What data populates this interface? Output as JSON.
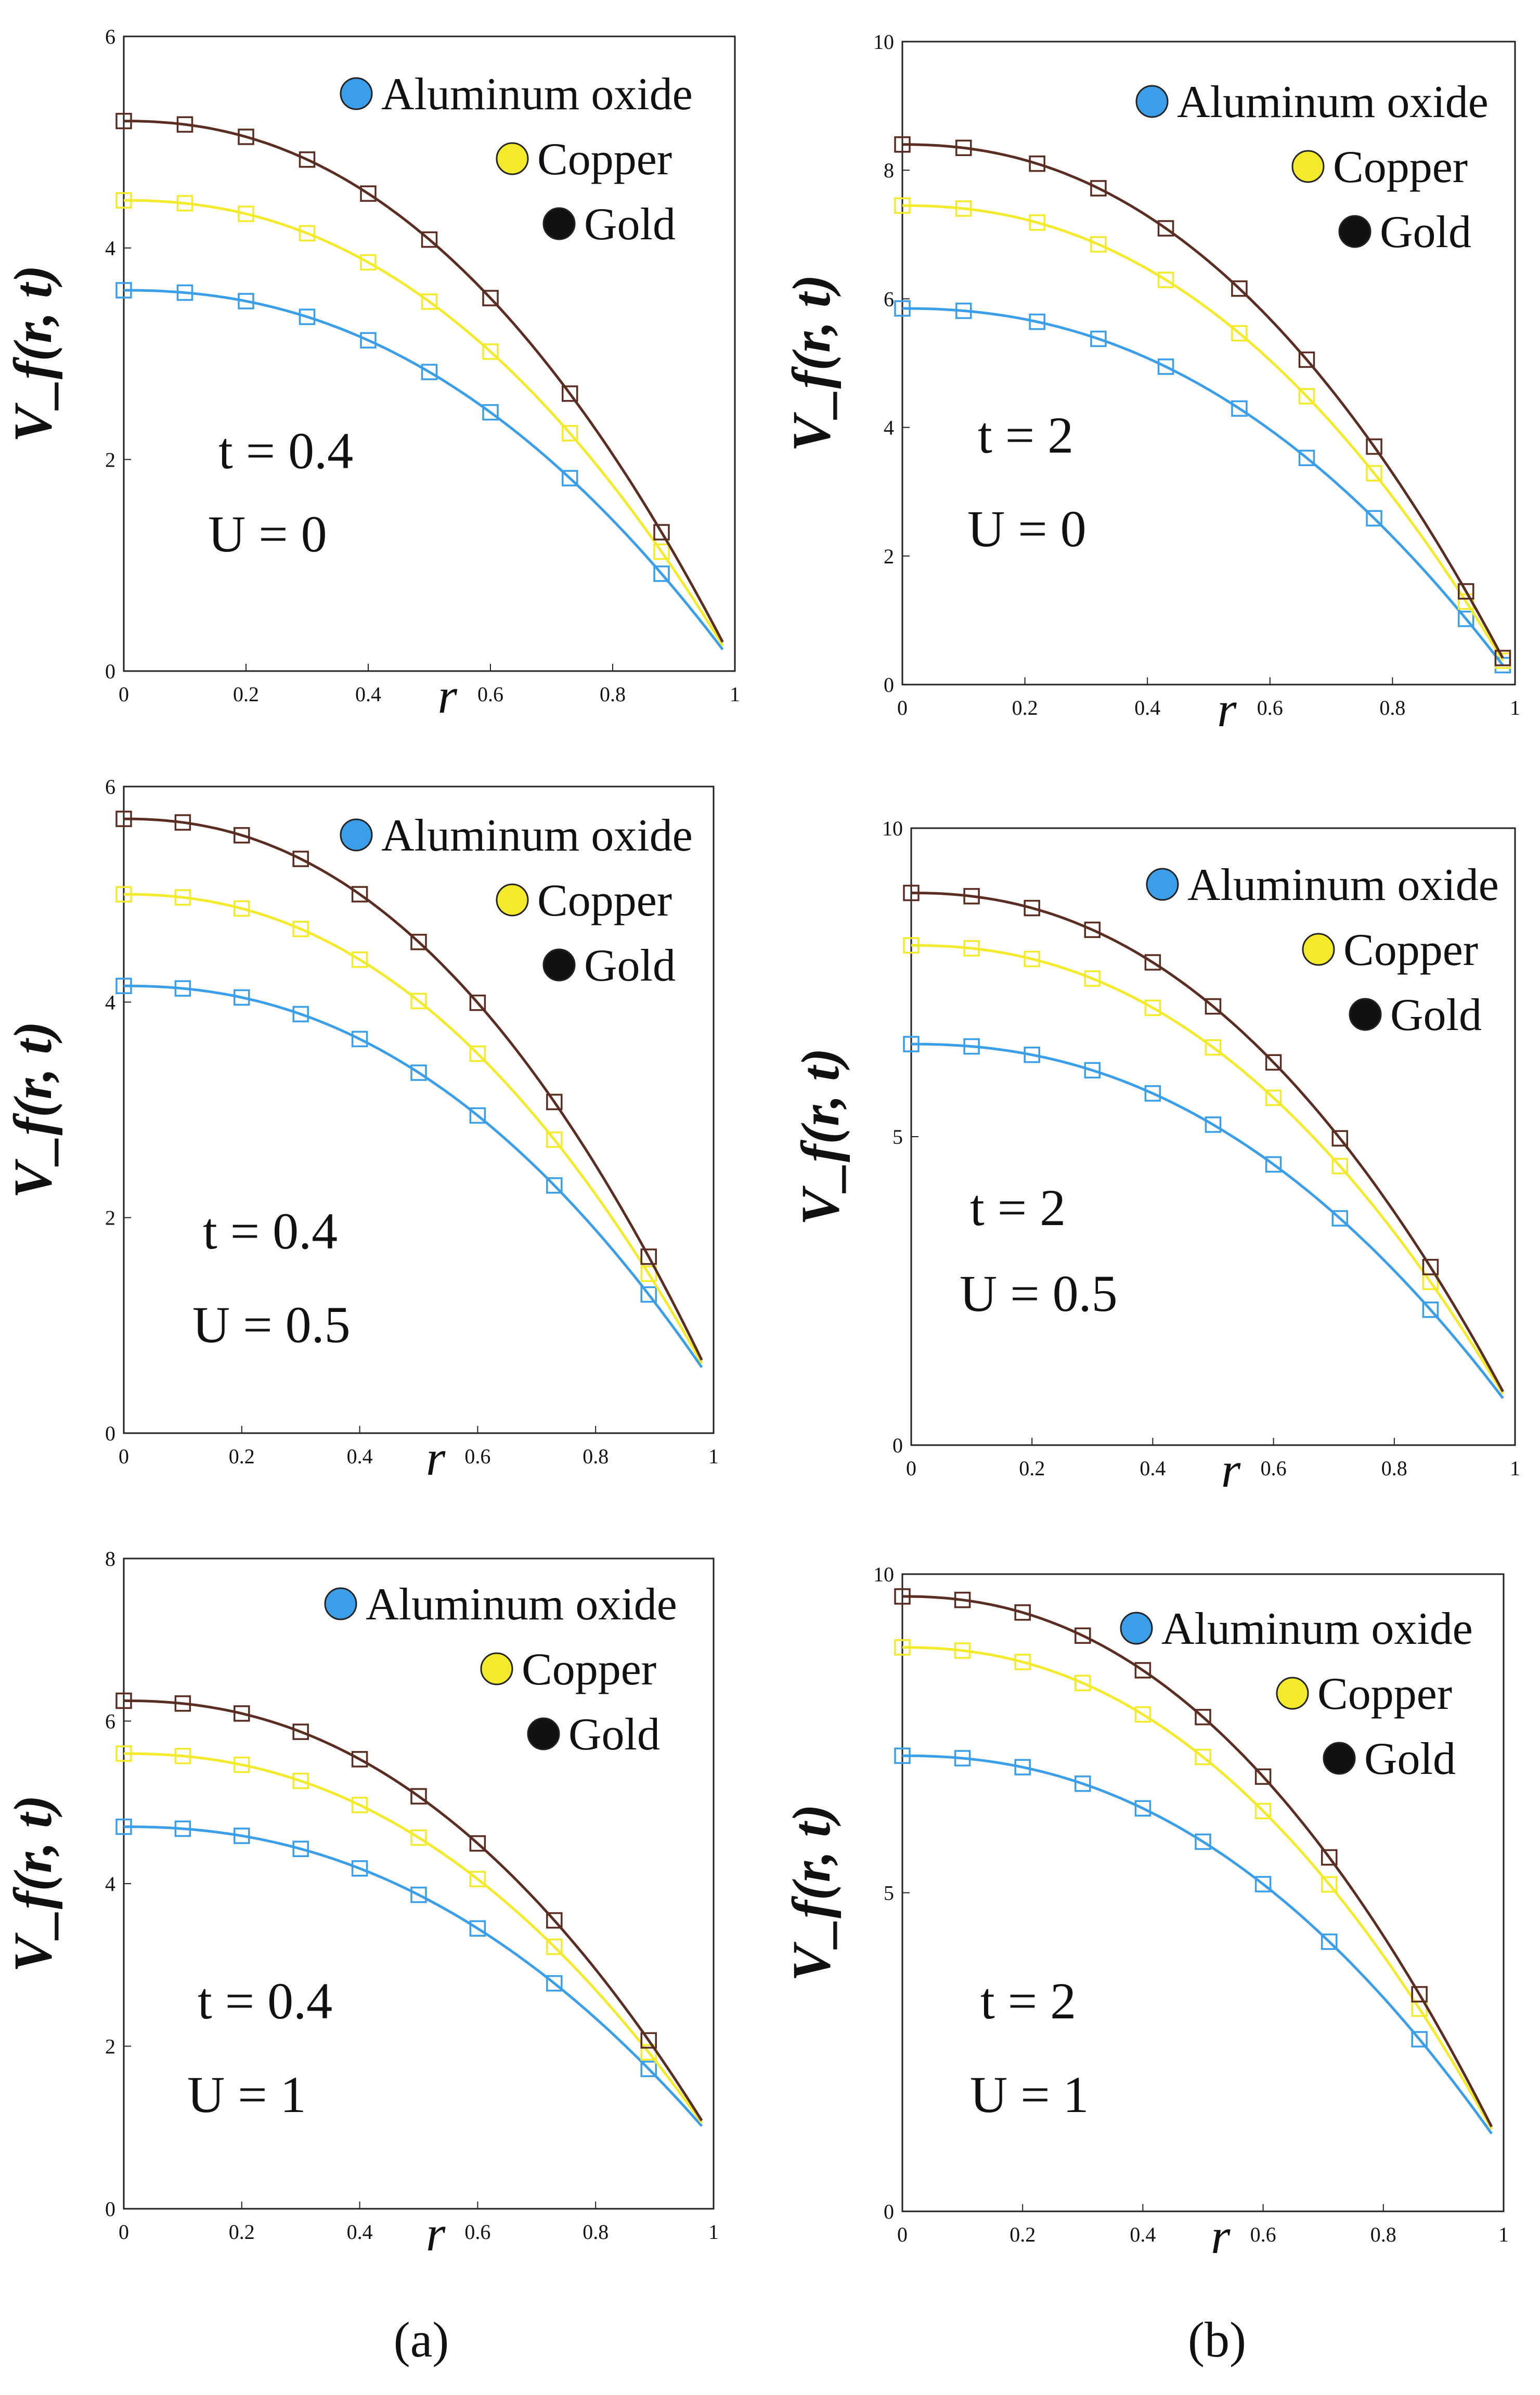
{
  "chart_data": [
    {
      "type": "line",
      "panel": "top-left",
      "ylabel": "V_f(r, t)",
      "xlabel": "r",
      "xlim": [
        0,
        1
      ],
      "ylim": [
        0,
        6
      ],
      "xticks": [
        "0",
        "0.2",
        "0.4",
        "0.6",
        "0.8",
        "1"
      ],
      "yticks": [
        "0",
        "2",
        "4",
        "6"
      ],
      "annotation": [
        "t = 0.4",
        "U = 0"
      ],
      "legend": [
        "Aluminum oxide",
        "Copper",
        "Gold"
      ],
      "legend_position": "top-right",
      "markers_r": [
        0,
        0.1,
        0.2,
        0.3,
        0.4,
        0.5,
        0.6,
        0.73,
        0.88
      ],
      "series": [
        {
          "name": "Aluminum oxide",
          "v0": 3.6,
          "vend": 0.05
        },
        {
          "name": "Copper",
          "v0": 4.45,
          "vend": 0.05
        },
        {
          "name": "Gold",
          "v0": 5.2,
          "vend": 0.05
        }
      ]
    },
    {
      "type": "line",
      "panel": "top-right",
      "ylabel": "V_f(r, t)",
      "xlabel": "r",
      "xlim": [
        0,
        1
      ],
      "ylim": [
        0,
        10
      ],
      "xticks": [
        "0",
        "0.2",
        "0.4",
        "0.6",
        "0.8",
        "1"
      ],
      "yticks": [
        "0",
        "2",
        "4",
        "6",
        "8",
        "10"
      ],
      "annotation": [
        "t = 2",
        "U = 0"
      ],
      "legend": [
        "Aluminum oxide",
        "Copper",
        "Gold"
      ],
      "legend_position": "top-right",
      "markers_r": [
        0,
        0.1,
        0.22,
        0.32,
        0.43,
        0.55,
        0.66,
        0.77,
        0.92,
        1.0
      ],
      "series": [
        {
          "name": "Aluminum oxide",
          "v0": 5.85,
          "vend": 0.05
        },
        {
          "name": "Copper",
          "v0": 7.45,
          "vend": 0.05
        },
        {
          "name": "Gold",
          "v0": 8.4,
          "vend": 0.05
        }
      ]
    },
    {
      "type": "line",
      "panel": "middle-left",
      "ylabel": "V_f(r, t)",
      "xlabel": "r",
      "xlim": [
        0,
        1
      ],
      "ylim": [
        0,
        6
      ],
      "xticks": [
        "0",
        "0.2",
        "0.4",
        "0.6",
        "0.8",
        "1"
      ],
      "yticks": [
        "0",
        "2",
        "4",
        "6"
      ],
      "annotation": [
        "t = 0.4",
        "U = 0.5"
      ],
      "legend": [
        "Aluminum oxide",
        "Copper",
        "Gold"
      ],
      "legend_position": "top-right",
      "markers_r": [
        0,
        0.1,
        0.2,
        0.3,
        0.4,
        0.5,
        0.6,
        0.73,
        0.89
      ],
      "series": [
        {
          "name": "Aluminum oxide",
          "v0": 4.15,
          "vend": 0.45
        },
        {
          "name": "Copper",
          "v0": 5.0,
          "vend": 0.45
        },
        {
          "name": "Gold",
          "v0": 5.7,
          "vend": 0.45
        }
      ]
    },
    {
      "type": "line",
      "panel": "middle-right",
      "ylabel": "V_f(r, t)",
      "xlabel": "r",
      "xlim": [
        0,
        1
      ],
      "ylim": [
        0,
        10
      ],
      "xticks": [
        "0",
        "0.2",
        "0.4",
        "0.6",
        "0.8",
        "1"
      ],
      "yticks": [
        "0",
        "5",
        "10"
      ],
      "annotation": [
        "t = 2",
        "U = 0.5"
      ],
      "legend": [
        "Aluminum oxide",
        "Copper",
        "Gold"
      ],
      "legend_position": "top-right",
      "markers_r": [
        0,
        0.1,
        0.2,
        0.3,
        0.4,
        0.5,
        0.6,
        0.71,
        0.86
      ],
      "series": [
        {
          "name": "Aluminum oxide",
          "v0": 6.5,
          "vend": 0.5
        },
        {
          "name": "Copper",
          "v0": 8.1,
          "vend": 0.5
        },
        {
          "name": "Gold",
          "v0": 8.95,
          "vend": 0.5
        }
      ]
    },
    {
      "type": "line",
      "panel": "bottom-left",
      "ylabel": "V_f(r, t)",
      "xlabel": "r",
      "xlim": [
        0,
        1
      ],
      "ylim": [
        0,
        8
      ],
      "xticks": [
        "0",
        "0.2",
        "0.4",
        "0.6",
        "0.8",
        "1"
      ],
      "yticks": [
        "0",
        "2",
        "4",
        "6",
        "8"
      ],
      "annotation": [
        "t = 0.4",
        "U = 1"
      ],
      "legend": [
        "Aluminum oxide",
        "Copper",
        "Gold"
      ],
      "legend_position": "top-right",
      "markers_r": [
        0,
        0.1,
        0.2,
        0.3,
        0.4,
        0.5,
        0.6,
        0.73,
        0.89
      ],
      "series": [
        {
          "name": "Aluminum oxide",
          "v0": 4.7,
          "vend": 0.85
        },
        {
          "name": "Copper",
          "v0": 5.6,
          "vend": 0.85
        },
        {
          "name": "Gold",
          "v0": 6.25,
          "vend": 0.85
        }
      ]
    },
    {
      "type": "line",
      "panel": "bottom-right",
      "ylabel": "V_f(r, t)",
      "xlabel": "r",
      "xlim": [
        0,
        1
      ],
      "ylim": [
        0,
        10
      ],
      "xticks": [
        "0",
        "0.2",
        "0.4",
        "0.6",
        "0.8",
        "1"
      ],
      "yticks": [
        "0",
        "5",
        "10"
      ],
      "annotation": [
        "t = 2",
        "U = 1"
      ],
      "legend": [
        "Aluminum oxide",
        "Copper",
        "Gold"
      ],
      "legend_position": "top-right",
      "markers_r": [
        0,
        0.1,
        0.2,
        0.3,
        0.4,
        0.5,
        0.6,
        0.71,
        0.86
      ],
      "series": [
        {
          "name": "Aluminum oxide",
          "v0": 7.15,
          "vend": 0.95
        },
        {
          "name": "Copper",
          "v0": 8.85,
          "vend": 0.95
        },
        {
          "name": "Gold",
          "v0": 9.65,
          "vend": 0.95
        }
      ]
    }
  ],
  "colors": {
    "Aluminum oxide": "#3a9ee8",
    "Copper": "#f2ea2a",
    "Gold": "#5a2d22",
    "gold_legend_dot": "#111111"
  },
  "captions": [
    "(a)",
    "(b)"
  ]
}
